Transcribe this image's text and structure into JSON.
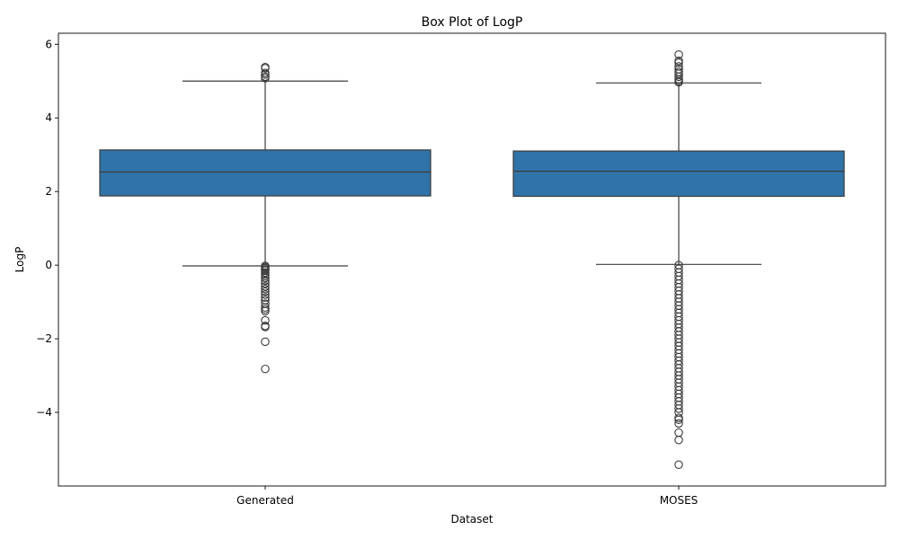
{
  "chart_data": {
    "type": "box",
    "title": "Box Plot of LogP",
    "xlabel": "Dataset",
    "ylabel": "LogP",
    "categories": [
      "Generated",
      "MOSES"
    ],
    "ylim": [
      -6.0,
      6.3
    ],
    "yticks": [
      -4,
      -2,
      0,
      2,
      4,
      6
    ],
    "ytick_labels": [
      "−4",
      "−2",
      "0",
      "2",
      "4",
      "6"
    ],
    "grid": false,
    "box_color": "#2f73a8",
    "edge_color": "#3c3c3c",
    "boxes": [
      {
        "category": "Generated",
        "q1": 1.88,
        "median": 2.53,
        "q3": 3.13,
        "whisker_low": -0.02,
        "whisker_high": 5.0,
        "outliers": [
          5.38,
          5.35,
          5.22,
          5.18,
          5.12,
          5.08,
          -0.02,
          -0.05,
          -0.08,
          -0.12,
          -0.15,
          -0.2,
          -0.25,
          -0.3,
          -0.35,
          -0.42,
          -0.5,
          -0.58,
          -0.65,
          -0.72,
          -0.8,
          -0.88,
          -0.95,
          -1.05,
          -1.15,
          -1.2,
          -1.25,
          -1.5,
          -1.65,
          -1.68,
          -2.08,
          -2.82
        ]
      },
      {
        "category": "MOSES",
        "q1": 1.87,
        "median": 2.55,
        "q3": 3.1,
        "whisker_low": 0.02,
        "whisker_high": 4.95,
        "outliers": [
          5.72,
          5.55,
          5.5,
          5.4,
          5.32,
          5.25,
          5.2,
          5.12,
          5.05,
          5.0,
          4.97,
          0.0,
          -0.1,
          -0.2,
          -0.3,
          -0.4,
          -0.5,
          -0.6,
          -0.7,
          -0.8,
          -0.9,
          -1.0,
          -1.1,
          -1.2,
          -1.3,
          -1.4,
          -1.5,
          -1.6,
          -1.7,
          -1.8,
          -1.9,
          -2.0,
          -2.1,
          -2.2,
          -2.3,
          -2.4,
          -2.5,
          -2.6,
          -2.7,
          -2.8,
          -2.9,
          -3.0,
          -3.1,
          -3.2,
          -3.3,
          -3.4,
          -3.5,
          -3.6,
          -3.7,
          -3.8,
          -3.9,
          -4.0,
          -4.15,
          -4.2,
          -4.3,
          -4.55,
          -4.75,
          -5.42
        ]
      }
    ]
  }
}
